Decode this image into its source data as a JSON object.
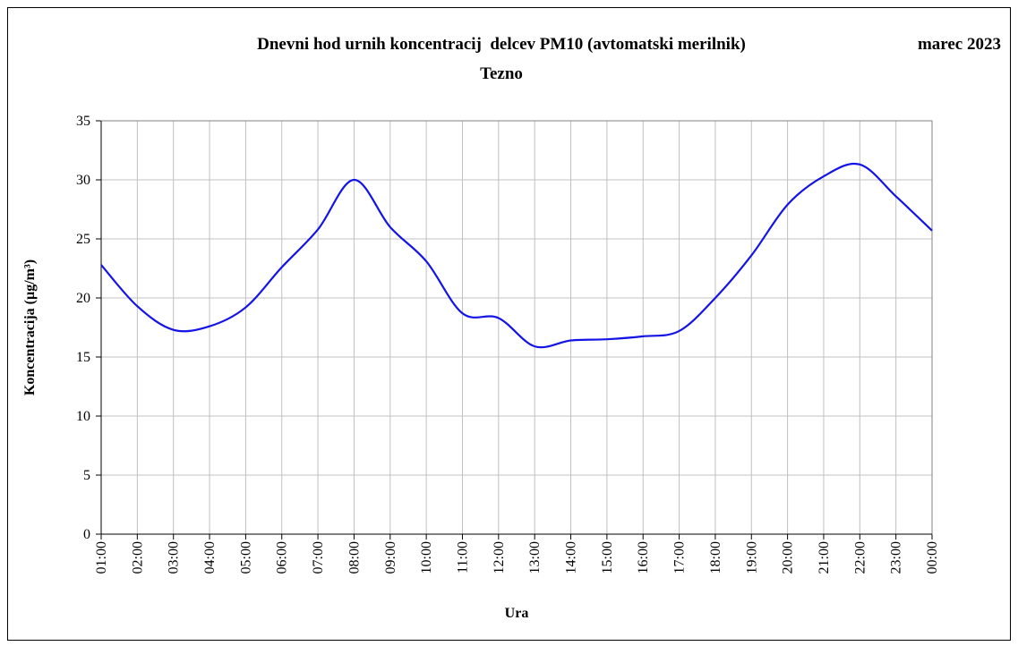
{
  "chart_data": {
    "type": "line",
    "title": "Dnevni hod urnih koncentracij  delcev PM10 (avtomatski merilnik)",
    "subtitle": "Tezno",
    "period": "marec 2023",
    "x_label": "Ura",
    "y_label": "Koncentracija (µg/m³)",
    "categories": [
      "01:00",
      "02:00",
      "03:00",
      "04:00",
      "05:00",
      "06:00",
      "07:00",
      "08:00",
      "09:00",
      "10:00",
      "11:00",
      "12:00",
      "13:00",
      "14:00",
      "15:00",
      "16:00",
      "17:00",
      "18:00",
      "19:00",
      "20:00",
      "21:00",
      "22:00",
      "23:00",
      "00:00"
    ],
    "series": [
      {
        "color": "#1414e6",
        "values": [
          22.8,
          19.3,
          17.3,
          17.6,
          19.2,
          22.6,
          25.8,
          30.0,
          26.0,
          23.1,
          18.7,
          18.3,
          15.9,
          16.4,
          16.5,
          16.75,
          17.2,
          20.0,
          23.6,
          27.9,
          30.3,
          31.3,
          28.6,
          25.7
        ]
      }
    ],
    "ylim": [
      0,
      35
    ],
    "yticks": [
      0,
      5,
      10,
      15,
      20,
      25,
      30,
      35
    ],
    "grid": true
  }
}
